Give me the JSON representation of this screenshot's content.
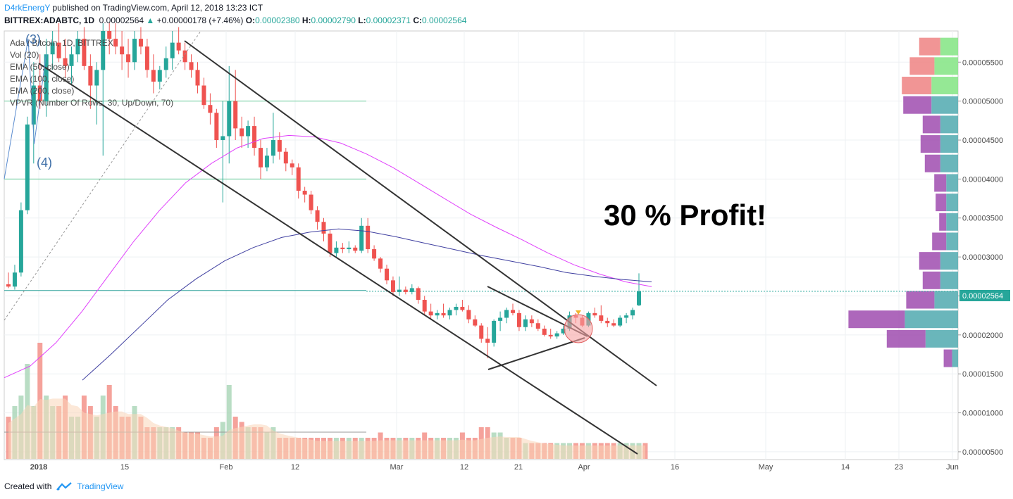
{
  "header": {
    "author": "D4rkEnergY",
    "published": "published on TradingView.com, April 12, 2018 13:23 ICT"
  },
  "quote": {
    "symbol": "BITTREX:ADABTC, 1D",
    "last": "0.00002564",
    "change": "+0.00000178 (+7.46%)",
    "o_label": "O:",
    "o": "0.00002380",
    "h_label": "H:",
    "h": "0.00002790",
    "l_label": "L:",
    "l": "0.00002371",
    "c_label": "C:",
    "c": "0.00002564"
  },
  "legend": [
    "Ada / Bitcoin, 1D, BITTREX",
    "Vol (20)",
    "EMA (50, close)",
    "EMA (100, close)",
    "EMA (200, close)",
    "VPVR (Number Of Rows, 30, Up/Down, 70)"
  ],
  "annotations": {
    "wave3": "(3)",
    "wave4": "(4)",
    "profit": "30 % Profit!"
  },
  "price_tag": "0.00002564",
  "footer": {
    "created_with": "Created with",
    "brand": "TradingView"
  },
  "colors": {
    "up": "#26a69a",
    "down": "#ef5350",
    "ema50": "#e040fb",
    "ema100": "#3f3fa0",
    "trendline": "#333333",
    "hline": "#66cc99",
    "vp_buy": "#5aaeb4",
    "vp_sell": "#a456b4",
    "vp_top_buy": "#8ae68a",
    "vp_top_sell": "#f08a8a"
  },
  "chart_data": {
    "type": "candlestick",
    "title": "Ada / Bitcoin, 1D, BITTREX",
    "y_axis_ticks": [
      "0.00005500",
      "0.00005000",
      "0.00004500",
      "0.00004000",
      "0.00003500",
      "0.00003000",
      "0.00002500",
      "0.00002000",
      "0.00001500",
      "0.00001000",
      "0.00000500"
    ],
    "x_axis_ticks": [
      "2018",
      "15",
      "Feb",
      "12",
      "Mar",
      "12",
      "21",
      "Apr",
      "16",
      "May",
      "14",
      "23",
      "Jun"
    ],
    "ylim": [
      4e-06,
      5.9e-05
    ],
    "candles": [
      {
        "o": 2.65e-05,
        "h": 2.8e-05,
        "l": 2.6e-05,
        "c": 2.62e-05
      },
      {
        "o": 2.62e-05,
        "h": 2.9e-05,
        "l": 2.58e-05,
        "c": 2.8e-05
      },
      {
        "o": 2.8e-05,
        "h": 3.7e-05,
        "l": 2.75e-05,
        "c": 3.6e-05
      },
      {
        "o": 3.6e-05,
        "h": 4.8e-05,
        "l": 3.55e-05,
        "c": 4.7e-05
      },
      {
        "o": 4.7e-05,
        "h": 5.5e-05,
        "l": 4.2e-05,
        "c": 5.2e-05
      },
      {
        "o": 5.2e-05,
        "h": 5.6e-05,
        "l": 4.9e-05,
        "c": 5e-05
      },
      {
        "o": 5e-05,
        "h": 5.8e-05,
        "l": 4.8e-05,
        "c": 5.6e-05
      },
      {
        "o": 5.6e-05,
        "h": 5.9e-05,
        "l": 5.4e-05,
        "c": 5.75e-05
      },
      {
        "o": 5.75e-05,
        "h": 6e-05,
        "l": 5.5e-05,
        "c": 5.55e-05
      },
      {
        "o": 5.55e-05,
        "h": 5.8e-05,
        "l": 5.3e-05,
        "c": 5.45e-05
      },
      {
        "o": 5.45e-05,
        "h": 5.7e-05,
        "l": 5.2e-05,
        "c": 5.6e-05
      },
      {
        "o": 5.6e-05,
        "h": 5.9e-05,
        "l": 5.5e-05,
        "c": 5.8e-05
      },
      {
        "o": 5.8e-05,
        "h": 5.95e-05,
        "l": 5.4e-05,
        "c": 5.45e-05
      },
      {
        "o": 5.45e-05,
        "h": 5.6e-05,
        "l": 4.9e-05,
        "c": 5.2e-05
      },
      {
        "o": 5.2e-05,
        "h": 5.5e-05,
        "l": 4.7e-05,
        "c": 5.4e-05
      },
      {
        "o": 5.4e-05,
        "h": 6e-05,
        "l": 4.3e-05,
        "c": 5.9e-05
      },
      {
        "o": 5.9e-05,
        "h": 6e-05,
        "l": 5.6e-05,
        "c": 5.8e-05
      },
      {
        "o": 5.8e-05,
        "h": 6e-05,
        "l": 5.6e-05,
        "c": 5.7e-05
      },
      {
        "o": 5.7e-05,
        "h": 5.9e-05,
        "l": 5.4e-05,
        "c": 5.6e-05
      },
      {
        "o": 5.6e-05,
        "h": 5.8e-05,
        "l": 5.3e-05,
        "c": 5.5e-05
      },
      {
        "o": 5.5e-05,
        "h": 5.9e-05,
        "l": 5.4e-05,
        "c": 5.8e-05
      },
      {
        "o": 5.8e-05,
        "h": 5.95e-05,
        "l": 5.6e-05,
        "c": 5.7e-05
      },
      {
        "o": 5.7e-05,
        "h": 5.8e-05,
        "l": 5.3e-05,
        "c": 5.4e-05
      },
      {
        "o": 5.4e-05,
        "h": 5.6e-05,
        "l": 5.1e-05,
        "c": 5.25e-05
      },
      {
        "o": 5.25e-05,
        "h": 5.45e-05,
        "l": 5.15e-05,
        "c": 5.4e-05
      },
      {
        "o": 5.4e-05,
        "h": 5.7e-05,
        "l": 5.3e-05,
        "c": 5.55e-05
      },
      {
        "o": 5.55e-05,
        "h": 5.9e-05,
        "l": 5.4e-05,
        "c": 5.75e-05
      },
      {
        "o": 5.75e-05,
        "h": 5.95e-05,
        "l": 5.6e-05,
        "c": 5.65e-05
      },
      {
        "o": 5.65e-05,
        "h": 5.75e-05,
        "l": 5.4e-05,
        "c": 5.5e-05
      },
      {
        "o": 5.5e-05,
        "h": 5.6e-05,
        "l": 5.3e-05,
        "c": 5.4e-05
      },
      {
        "o": 5.4e-05,
        "h": 5.5e-05,
        "l": 5.1e-05,
        "c": 5.2e-05
      },
      {
        "o": 5.2e-05,
        "h": 5.3e-05,
        "l": 4.9e-05,
        "c": 4.95e-05
      },
      {
        "o": 4.95e-05,
        "h": 5.1e-05,
        "l": 4.7e-05,
        "c": 4.85e-05
      },
      {
        "o": 4.85e-05,
        "h": 4.9e-05,
        "l": 4.4e-05,
        "c": 4.5e-05
      },
      {
        "o": 4.5e-05,
        "h": 5e-05,
        "l": 3.7e-05,
        "c": 4.55e-05
      },
      {
        "o": 4.55e-05,
        "h": 5.45e-05,
        "l": 4.2e-05,
        "c": 5e-05
      },
      {
        "o": 5e-05,
        "h": 5.4e-05,
        "l": 4.5e-05,
        "c": 4.65e-05
      },
      {
        "o": 4.65e-05,
        "h": 4.8e-05,
        "l": 4.4e-05,
        "c": 4.55e-05
      },
      {
        "o": 4.55e-05,
        "h": 4.75e-05,
        "l": 4.4e-05,
        "c": 4.68e-05
      },
      {
        "o": 4.68e-05,
        "h": 4.8e-05,
        "l": 4.3e-05,
        "c": 4.4e-05
      },
      {
        "o": 4.4e-05,
        "h": 4.5e-05,
        "l": 4e-05,
        "c": 4.15e-05
      },
      {
        "o": 4.15e-05,
        "h": 4.4e-05,
        "l": 4.1e-05,
        "c": 4.3e-05
      },
      {
        "o": 4.3e-05,
        "h": 4.85e-05,
        "l": 4.2e-05,
        "c": 4.5e-05
      },
      {
        "o": 4.5e-05,
        "h": 4.6e-05,
        "l": 4.25e-05,
        "c": 4.35e-05
      },
      {
        "o": 4.35e-05,
        "h": 4.4e-05,
        "l": 4.1e-05,
        "c": 4.2e-05
      },
      {
        "o": 4.2e-05,
        "h": 4.25e-05,
        "l": 4.05e-05,
        "c": 4.15e-05
      },
      {
        "o": 4.15e-05,
        "h": 4.2e-05,
        "l": 3.75e-05,
        "c": 3.85e-05
      },
      {
        "o": 3.85e-05,
        "h": 3.9e-05,
        "l": 3.7e-05,
        "c": 3.8e-05
      },
      {
        "o": 3.8e-05,
        "h": 3.85e-05,
        "l": 3.55e-05,
        "c": 3.6e-05
      },
      {
        "o": 3.6e-05,
        "h": 3.65e-05,
        "l": 3.35e-05,
        "c": 3.45e-05
      },
      {
        "o": 3.45e-05,
        "h": 3.5e-05,
        "l": 3.2e-05,
        "c": 3.3e-05
      },
      {
        "o": 3.3e-05,
        "h": 3.35e-05,
        "l": 3e-05,
        "c": 3.05e-05
      },
      {
        "o": 3.05e-05,
        "h": 3.2e-05,
        "l": 3e-05,
        "c": 3.12e-05
      },
      {
        "o": 3.12e-05,
        "h": 3.18e-05,
        "l": 3.05e-05,
        "c": 3.1e-05
      },
      {
        "o": 3.1e-05,
        "h": 3.2e-05,
        "l": 3.05e-05,
        "c": 3.12e-05
      },
      {
        "o": 3.12e-05,
        "h": 3.15e-05,
        "l": 3.05e-05,
        "c": 3.08e-05
      },
      {
        "o": 3.08e-05,
        "h": 3.5e-05,
        "l": 3.05e-05,
        "c": 3.4e-05
      },
      {
        "o": 3.4e-05,
        "h": 3.5e-05,
        "l": 3.05e-05,
        "c": 3.1e-05
      },
      {
        "o": 3.1e-05,
        "h": 3.15e-05,
        "l": 2.95e-05,
        "c": 2.98e-05
      },
      {
        "o": 2.98e-05,
        "h": 3e-05,
        "l": 2.8e-05,
        "c": 2.85e-05
      },
      {
        "o": 2.85e-05,
        "h": 2.9e-05,
        "l": 2.65e-05,
        "c": 2.7e-05
      },
      {
        "o": 2.7e-05,
        "h": 2.75e-05,
        "l": 2.5e-05,
        "c": 2.55e-05
      },
      {
        "o": 2.55e-05,
        "h": 2.75e-05,
        "l": 2.5e-05,
        "c": 2.58e-05
      },
      {
        "o": 2.58e-05,
        "h": 2.62e-05,
        "l": 2.52e-05,
        "c": 2.55e-05
      },
      {
        "o": 2.55e-05,
        "h": 2.65e-05,
        "l": 2.52e-05,
        "c": 2.6e-05
      },
      {
        "o": 2.6e-05,
        "h": 2.62e-05,
        "l": 2.4e-05,
        "c": 2.45e-05
      },
      {
        "o": 2.45e-05,
        "h": 2.5e-05,
        "l": 2.25e-05,
        "c": 2.3e-05
      },
      {
        "o": 2.3e-05,
        "h": 2.4e-05,
        "l": 2.2e-05,
        "c": 2.25e-05
      },
      {
        "o": 2.25e-05,
        "h": 2.32e-05,
        "l": 2.2e-05,
        "c": 2.28e-05
      },
      {
        "o": 2.28e-05,
        "h": 2.4e-05,
        "l": 2.22e-05,
        "c": 2.25e-05
      },
      {
        "o": 2.25e-05,
        "h": 2.35e-05,
        "l": 2.2e-05,
        "c": 2.32e-05
      },
      {
        "o": 2.32e-05,
        "h": 2.4e-05,
        "l": 2.25e-05,
        "c": 2.36e-05
      },
      {
        "o": 2.36e-05,
        "h": 2.45e-05,
        "l": 2.3e-05,
        "c": 2.32e-05
      },
      {
        "o": 2.32e-05,
        "h": 2.38e-05,
        "l": 2.15e-05,
        "c": 2.2e-05
      },
      {
        "o": 2.2e-05,
        "h": 2.25e-05,
        "l": 2.1e-05,
        "c": 2.12e-05
      },
      {
        "o": 2.12e-05,
        "h": 2.15e-05,
        "l": 1.9e-05,
        "c": 1.95e-05
      },
      {
        "o": 1.95e-05,
        "h": 2.1e-05,
        "l": 1.7e-05,
        "c": 1.9e-05
      },
      {
        "o": 1.9e-05,
        "h": 2.2e-05,
        "l": 1.85e-05,
        "c": 2.18e-05
      },
      {
        "o": 2.18e-05,
        "h": 2.3e-05,
        "l": 2.05e-05,
        "c": 2.22e-05
      },
      {
        "o": 2.22e-05,
        "h": 2.35e-05,
        "l": 2.15e-05,
        "c": 2.32e-05
      },
      {
        "o": 2.32e-05,
        "h": 2.4e-05,
        "l": 2.25e-05,
        "c": 2.28e-05
      },
      {
        "o": 2.28e-05,
        "h": 2.32e-05,
        "l": 2.05e-05,
        "c": 2.1e-05
      },
      {
        "o": 2.1e-05,
        "h": 2.25e-05,
        "l": 2.05e-05,
        "c": 2.2e-05
      },
      {
        "o": 2.2e-05,
        "h": 2.25e-05,
        "l": 2.1e-05,
        "c": 2.15e-05
      },
      {
        "o": 2.15e-05,
        "h": 2.2e-05,
        "l": 2.05e-05,
        "c": 2.08e-05
      },
      {
        "o": 2.08e-05,
        "h": 2.12e-05,
        "l": 1.98e-05,
        "c": 2e-05
      },
      {
        "o": 2e-05,
        "h": 2.08e-05,
        "l": 1.95e-05,
        "c": 1.98e-05
      },
      {
        "o": 1.98e-05,
        "h": 2.05e-05,
        "l": 1.95e-05,
        "c": 2.02e-05
      },
      {
        "o": 2.02e-05,
        "h": 2.12e-05,
        "l": 2e-05,
        "c": 2.08e-05
      },
      {
        "o": 2.08e-05,
        "h": 2.3e-05,
        "l": 2.05e-05,
        "c": 2.25e-05
      },
      {
        "o": 2.25e-05,
        "h": 2.28e-05,
        "l": 2.15e-05,
        "c": 2.22e-05
      },
      {
        "o": 2.22e-05,
        "h": 2.25e-05,
        "l": 2.1e-05,
        "c": 2.12e-05
      },
      {
        "o": 2.12e-05,
        "h": 2.3e-05,
        "l": 2.1e-05,
        "c": 2.28e-05
      },
      {
        "o": 2.28e-05,
        "h": 2.35e-05,
        "l": 2.22e-05,
        "c": 2.25e-05
      },
      {
        "o": 2.25e-05,
        "h": 2.38e-05,
        "l": 2.15e-05,
        "c": 2.18e-05
      },
      {
        "o": 2.18e-05,
        "h": 2.22e-05,
        "l": 2.1e-05,
        "c": 2.15e-05
      },
      {
        "o": 2.15e-05,
        "h": 2.2e-05,
        "l": 2.1e-05,
        "c": 2.12e-05
      },
      {
        "o": 2.12e-05,
        "h": 2.25e-05,
        "l": 2.1e-05,
        "c": 2.22e-05
      },
      {
        "o": 2.22e-05,
        "h": 2.28e-05,
        "l": 2.15e-05,
        "c": 2.25e-05
      },
      {
        "o": 2.25e-05,
        "h": 2.35e-05,
        "l": 2.2e-05,
        "c": 2.32e-05
      },
      {
        "o": 2.38e-05,
        "h": 2.79e-05,
        "l": 2.37e-05,
        "c": 2.56e-05
      }
    ],
    "volumes": [
      0.4,
      0.5,
      0.6,
      0.9,
      0.5,
      1.1,
      0.6,
      0.5,
      0.5,
      0.6,
      0.4,
      0.4,
      0.6,
      0.5,
      0.4,
      0.6,
      0.7,
      0.5,
      0.4,
      0.4,
      0.5,
      0.4,
      0.3,
      0.3,
      0.3,
      0.3,
      0.3,
      0.3,
      0.25,
      0.25,
      0.25,
      0.2,
      0.2,
      0.3,
      0.35,
      0.7,
      0.4,
      0.35,
      0.3,
      0.3,
      0.3,
      0.25,
      0.3,
      0.2,
      0.2,
      0.2,
      0.2,
      0.2,
      0.2,
      0.2,
      0.2,
      0.2,
      0.2,
      0.2,
      0.2,
      0.2,
      0.2,
      0.2,
      0.2,
      0.25,
      0.2,
      0.2,
      0.2,
      0.2,
      0.2,
      0.2,
      0.25,
      0.2,
      0.2,
      0.2,
      0.2,
      0.2,
      0.25,
      0.2,
      0.2,
      0.3,
      0.3,
      0.25,
      0.25,
      0.2,
      0.2,
      0.2,
      0.15,
      0.15,
      0.15,
      0.15,
      0.15,
      0.15,
      0.15,
      0.15,
      0.15,
      0.15,
      0.15,
      0.15,
      0.15,
      0.15,
      0.15,
      0.15,
      0.15,
      0.15,
      0.15,
      0.15
    ],
    "vpvr": [
      {
        "price": 5.7e-05,
        "buy": 0.3,
        "sell": 0.3
      },
      {
        "price": 5.45e-05,
        "buy": 0.4,
        "sell": 0.35
      },
      {
        "price": 5.2e-05,
        "buy": 0.45,
        "sell": 0.42
      },
      {
        "price": 4.95e-05,
        "buy": 0.45,
        "sell": 0.4
      },
      {
        "price": 4.7e-05,
        "buy": 0.3,
        "sell": 0.25
      },
      {
        "price": 4.45e-05,
        "buy": 0.3,
        "sell": 0.28
      },
      {
        "price": 4.2e-05,
        "buy": 0.3,
        "sell": 0.22
      },
      {
        "price": 3.95e-05,
        "buy": 0.2,
        "sell": 0.17
      },
      {
        "price": 3.7e-05,
        "buy": 0.2,
        "sell": 0.15
      },
      {
        "price": 3.45e-05,
        "buy": 0.2,
        "sell": 0.1
      },
      {
        "price": 3.2e-05,
        "buy": 0.2,
        "sell": 0.2
      },
      {
        "price": 2.95e-05,
        "buy": 0.3,
        "sell": 0.3
      },
      {
        "price": 2.7e-05,
        "buy": 0.3,
        "sell": 0.25
      },
      {
        "price": 2.45e-05,
        "buy": 0.4,
        "sell": 0.4
      },
      {
        "price": 2.2e-05,
        "buy": 0.9,
        "sell": 0.8
      },
      {
        "price": 1.95e-05,
        "buy": 0.55,
        "sell": 0.55
      },
      {
        "price": 1.7e-05,
        "buy": 0.1,
        "sell": 0.12
      }
    ],
    "ema50": [
      1.45e-05,
      1.6e-05,
      1.9e-05,
      2.3e-05,
      2.75e-05,
      3.2e-05,
      3.6e-05,
      3.95e-05,
      4.2e-05,
      4.4e-05,
      4.52e-05,
      4.56e-05,
      4.54e-05,
      4.46e-05,
      4.32e-05,
      4.15e-05,
      3.95e-05,
      3.75e-05,
      3.55e-05,
      3.38e-05,
      3.22e-05,
      3.05e-05,
      2.9e-05,
      2.78e-05,
      2.68e-05,
      2.62e-05
    ],
    "ema100": [
      1.42e-05,
      1.75e-05,
      2.1e-05,
      2.45e-05,
      2.72e-05,
      2.95e-05,
      3.12e-05,
      3.25e-05,
      3.32e-05,
      3.36e-05,
      3.33e-05,
      3.26e-05,
      3.18e-05,
      3.1e-05,
      3.02e-05,
      2.95e-05,
      2.88e-05,
      2.8e-05,
      2.75e-05,
      2.71e-05,
      2.68e-05
    ],
    "hlines": [
      5e-05,
      4e-05,
      2.57e-05
    ],
    "wave_points": [
      [
        0,
        4e-05
      ],
      [
        4,
        5.8e-05
      ],
      [
        5,
        4.45e-05
      ],
      [
        7,
        5.6e-05
      ]
    ]
  }
}
